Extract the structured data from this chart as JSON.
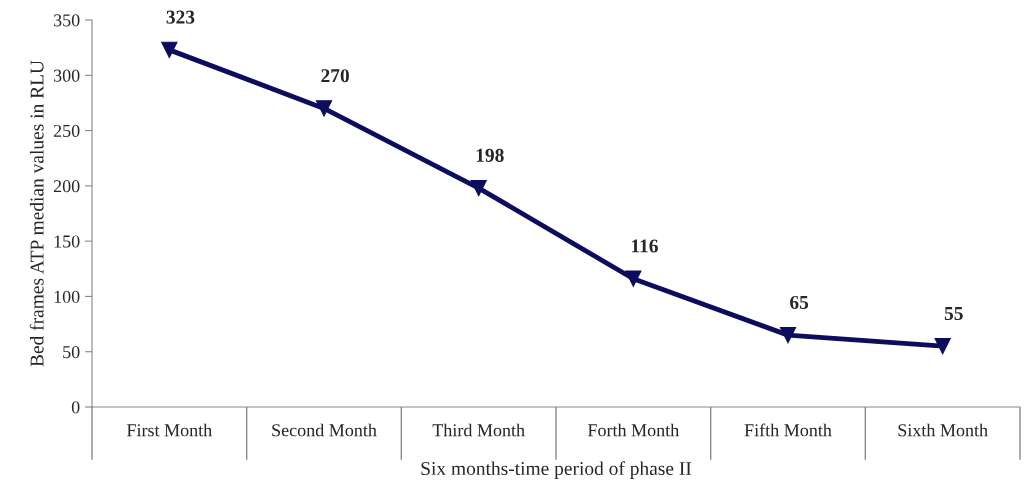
{
  "chart_data": {
    "type": "line",
    "categories": [
      "First Month",
      "Second Month",
      "Third Month",
      "Forth Month",
      "Fifth Month",
      "Sixth Month"
    ],
    "values": [
      323,
      270,
      198,
      116,
      65,
      55
    ],
    "color": "#0d0d5e",
    "ylim": [
      0,
      350
    ],
    "yticks": [
      0,
      50,
      100,
      150,
      200,
      250,
      300,
      350
    ],
    "xlabel": "Six months-time period of phase II",
    "ylabel": "Bed frames ATP median values in RLU",
    "marker": "triangle",
    "data_labels": true,
    "grid": false,
    "legend": false
  }
}
